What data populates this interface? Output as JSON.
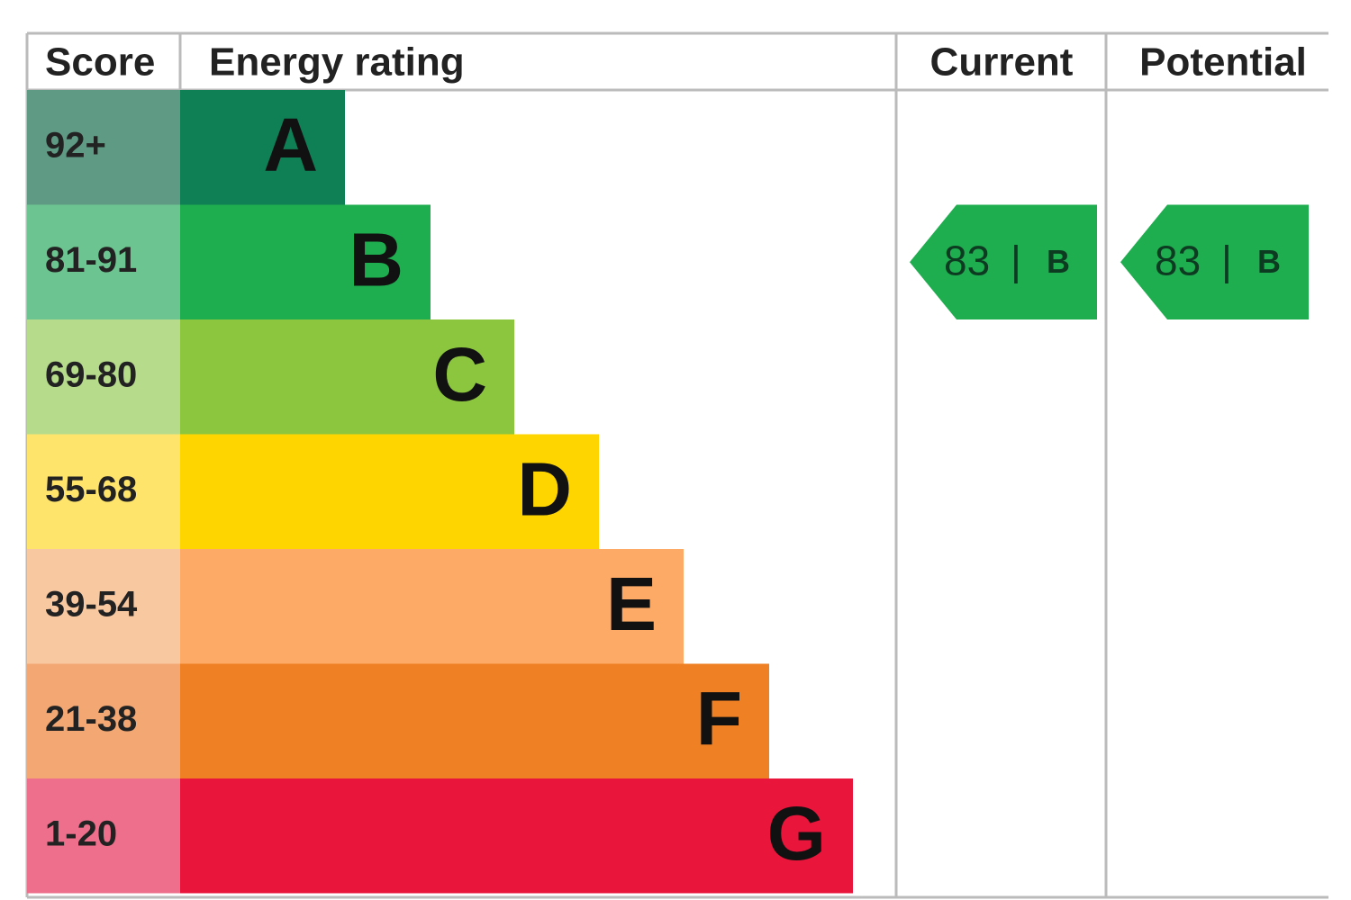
{
  "header": {
    "score": "Score",
    "energy_rating": "Energy rating",
    "current": "Current",
    "potential": "Potential"
  },
  "bands": [
    {
      "score": "92+",
      "letter": "A",
      "color": "#0f7f55",
      "score_color": "#5f9b84"
    },
    {
      "score": "81-91",
      "letter": "B",
      "color": "#1fae4f",
      "score_color": "#6cc590"
    },
    {
      "score": "69-80",
      "letter": "C",
      "color": "#8cc63f",
      "score_color": "#b6dc8b"
    },
    {
      "score": "55-68",
      "letter": "D",
      "color": "#ffd500",
      "score_color": "#ffe46c"
    },
    {
      "score": "39-54",
      "letter": "E",
      "color": "#fcaa65",
      "score_color": "#f8c8a0"
    },
    {
      "score": "21-38",
      "letter": "F",
      "color": "#ef8023",
      "score_color": "#f3a874"
    },
    {
      "score": "1-20",
      "letter": "G",
      "color": "#e9153b",
      "score_color": "#ee6f8b"
    }
  ],
  "current": {
    "score": 83,
    "separator": "|",
    "band": "B"
  },
  "potential": {
    "score": 83,
    "separator": "|",
    "band": "B"
  }
}
